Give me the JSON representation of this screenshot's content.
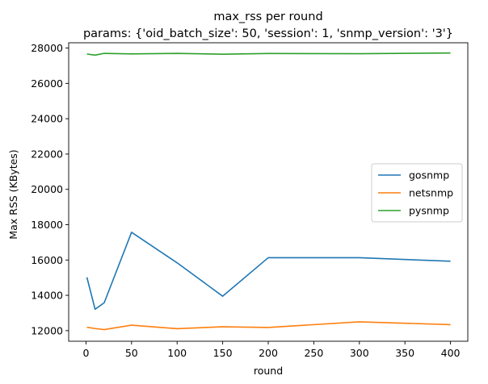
{
  "chart_data": {
    "type": "line",
    "title": "max_rss per round",
    "subtitle": "params: {'oid_batch_size': 50, 'session': 1, 'snmp_version': '3'}",
    "xlabel": "round",
    "ylabel": "Max RSS (KBytes)",
    "xlim": [
      -19,
      419
    ],
    "ylim": [
      11400,
      28300
    ],
    "xticks": [
      0,
      50,
      100,
      150,
      200,
      250,
      300,
      350,
      400
    ],
    "yticks": [
      12000,
      14000,
      16000,
      18000,
      20000,
      22000,
      24000,
      26000,
      28000
    ],
    "grid": false,
    "legend_position": "center-right",
    "series": [
      {
        "name": "gosnmp",
        "color": "#1f77b4",
        "x": [
          1,
          10,
          20,
          50,
          100,
          150,
          200,
          300,
          400
        ],
        "y": [
          15020,
          13210,
          13580,
          17570,
          15840,
          13950,
          16130,
          16130,
          15930
        ]
      },
      {
        "name": "netsnmp",
        "color": "#ff7f0e",
        "x": [
          1,
          10,
          20,
          50,
          100,
          150,
          200,
          300,
          400
        ],
        "y": [
          12190,
          12120,
          12060,
          12310,
          12110,
          12220,
          12180,
          12500,
          12340
        ]
      },
      {
        "name": "pysnmp",
        "color": "#2ca02c",
        "x": [
          1,
          10,
          20,
          50,
          100,
          150,
          200,
          300,
          400
        ],
        "y": [
          27660,
          27600,
          27700,
          27670,
          27700,
          27650,
          27690,
          27680,
          27720
        ]
      }
    ]
  }
}
